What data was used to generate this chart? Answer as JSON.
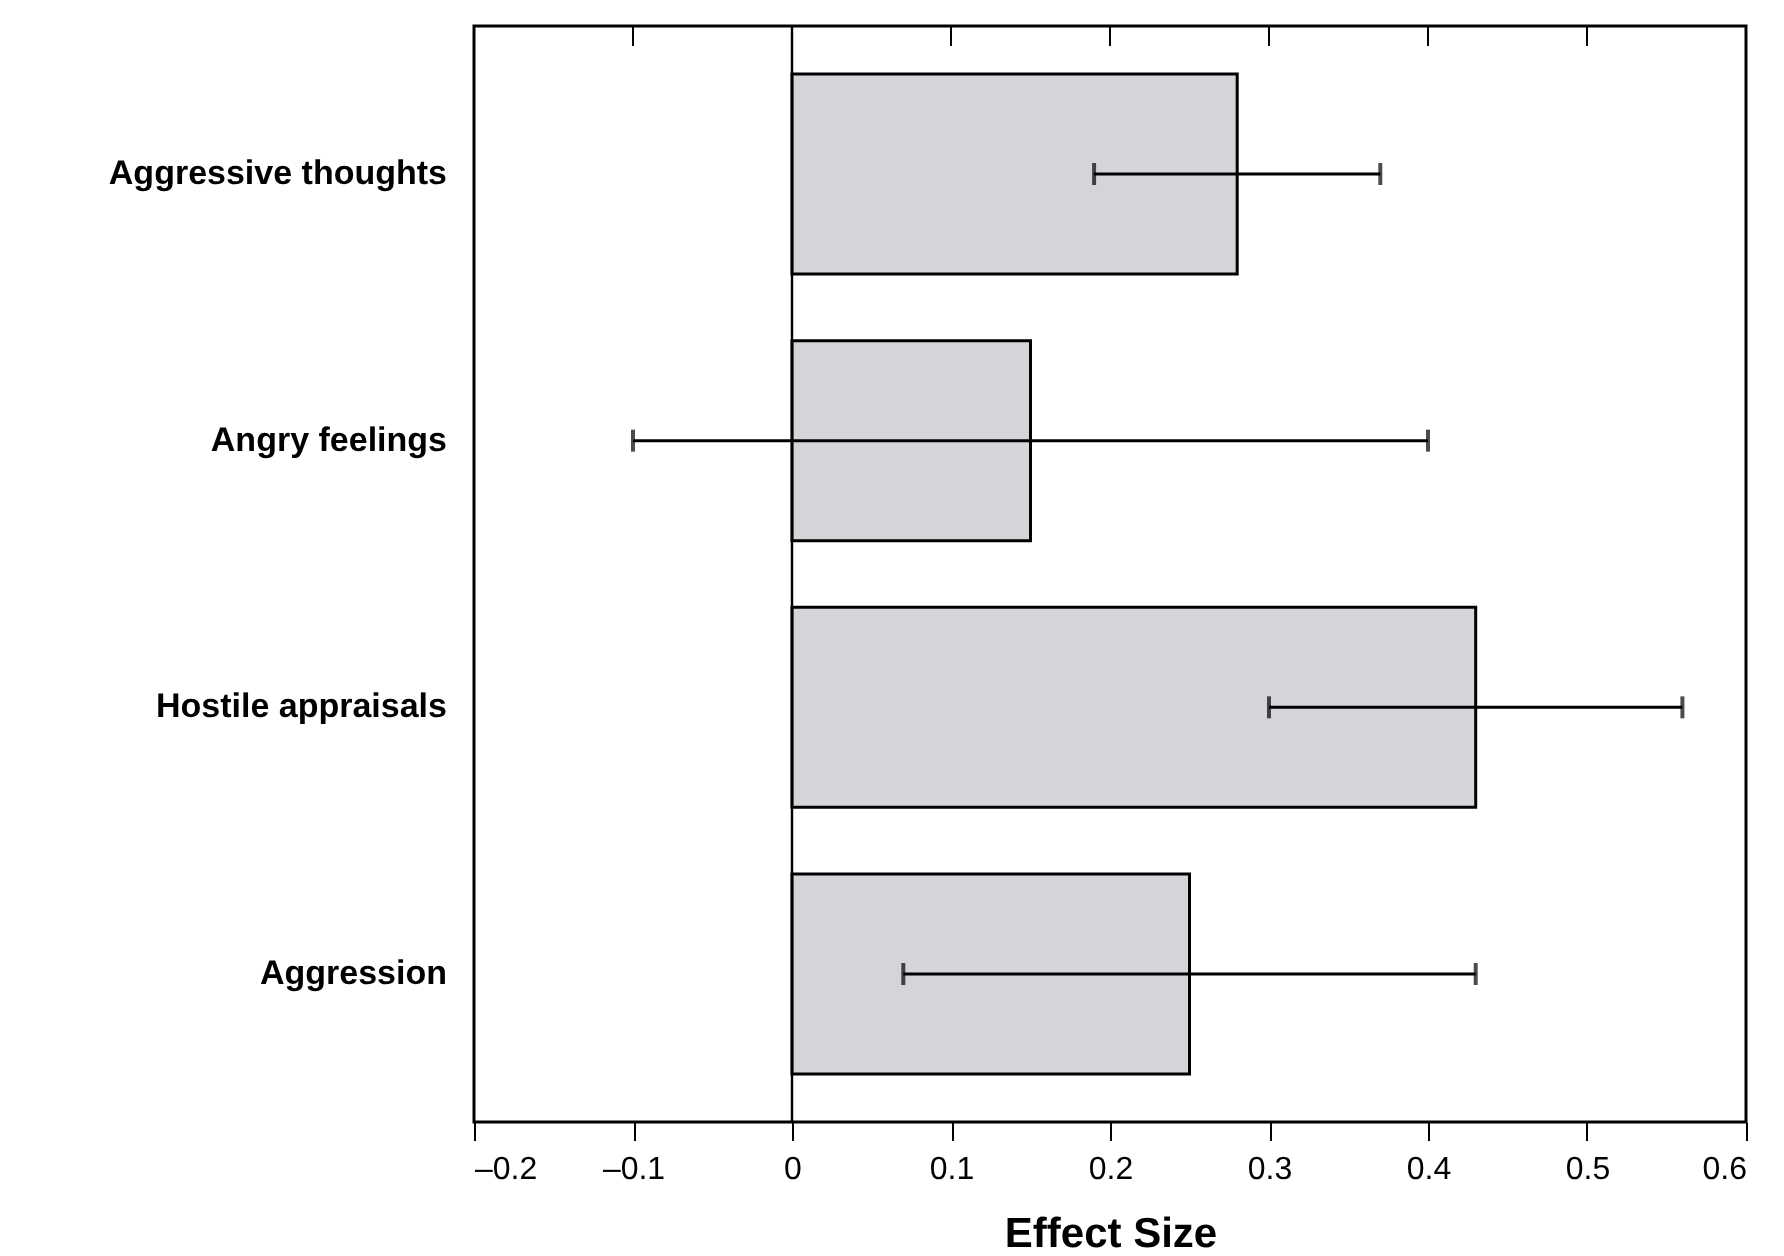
{
  "chart_data": {
    "type": "bar",
    "orientation": "horizontal",
    "xlabel": "Effect Size",
    "categories": [
      "Aggressive thoughts",
      "Angry feelings",
      "Hostile appraisals",
      "Aggression"
    ],
    "values": [
      0.28,
      0.15,
      0.43,
      0.25
    ],
    "errors": [
      [
        0.19,
        0.37
      ],
      [
        -0.1,
        0.4
      ],
      [
        0.3,
        0.56
      ],
      [
        0.07,
        0.43
      ]
    ],
    "color": "#d4d5d8",
    "xlim": [
      -0.2,
      0.6
    ],
    "xticks": [
      {
        "value": -0.2,
        "label": "–0.2"
      },
      {
        "value": -0.1,
        "label": "–0.1"
      },
      0,
      0.1,
      0.2,
      0.3,
      0.4,
      0.5,
      0.6
    ],
    "ref_lines": [
      {
        "axis": "x",
        "value": 0,
        "color": "#000000",
        "line_style": "solid"
      }
    ],
    "grid": false
  }
}
